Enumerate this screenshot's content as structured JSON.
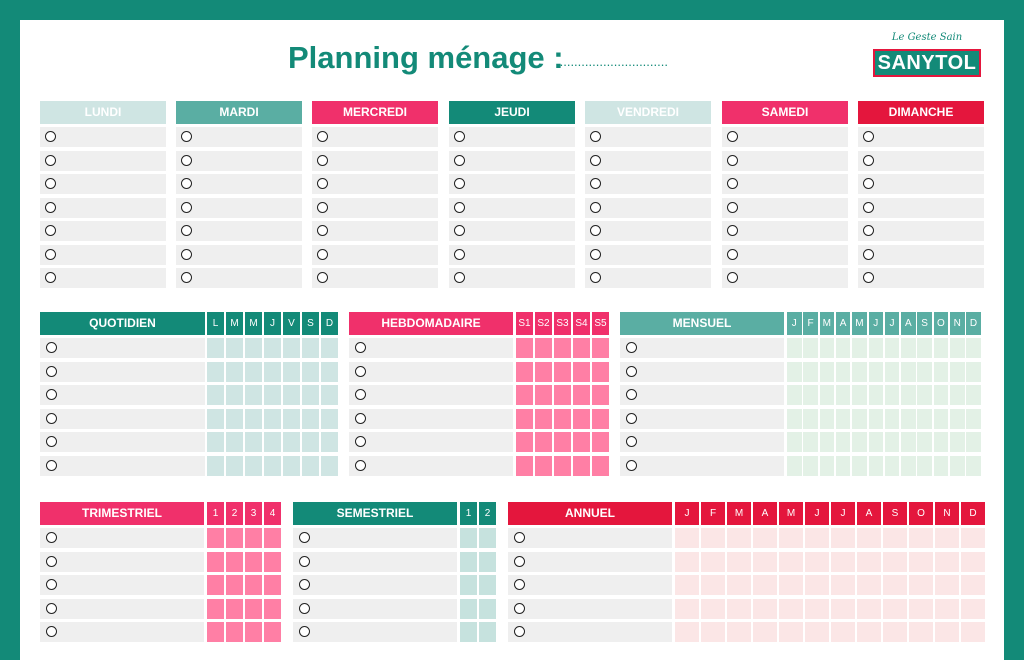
{
  "header": {
    "title": "Planning ménage :",
    "dots": "...............................",
    "logo_tagline": "Le Geste Sain",
    "logo_brand": "SANYTOL"
  },
  "days": [
    "LUNDI",
    "MARDI",
    "MERCREDI",
    "JEUDI",
    "VENDREDI",
    "SAMEDI",
    "DIMANCHE"
  ],
  "sections": {
    "quotidien": {
      "title": "QUOTIDIEN",
      "cols": [
        "L",
        "M",
        "M",
        "J",
        "V",
        "S",
        "D"
      ]
    },
    "hebdomadaire": {
      "title": "HEBDOMADAIRE",
      "cols": [
        "S1",
        "S2",
        "S3",
        "S4",
        "S5"
      ]
    },
    "mensuel": {
      "title": "MENSUEL",
      "cols": [
        "J",
        "F",
        "M",
        "A",
        "M",
        "J",
        "J",
        "A",
        "S",
        "O",
        "N",
        "D"
      ]
    },
    "trimestriel": {
      "title": "TRIMESTRIEL",
      "cols": [
        "1",
        "2",
        "3",
        "4"
      ]
    },
    "semestriel": {
      "title": "SEMESTRIEL",
      "cols": [
        "1",
        "2"
      ]
    },
    "annuel": {
      "title": "ANNUEL",
      "cols": [
        "J",
        "F",
        "M",
        "A",
        "M",
        "J",
        "J",
        "A",
        "S",
        "O",
        "N",
        "D"
      ]
    }
  },
  "colors": {
    "frame": "#138a78",
    "teal": "#138a78",
    "pink": "#f0306b",
    "red": "#e4163d",
    "mint": "#cfe5e3"
  }
}
